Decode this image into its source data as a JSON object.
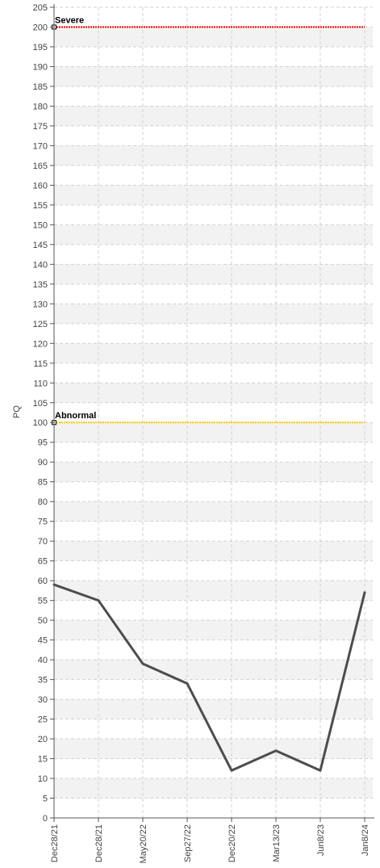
{
  "chart_data": {
    "type": "line",
    "ylabel": "PQ",
    "xlabel": "",
    "ylim": [
      0,
      205
    ],
    "y_tick_step": 5,
    "grid": true,
    "categories": [
      "Dec28/21",
      "Dec28/21",
      "May20/22",
      "Sep27/22",
      "Dec20/22",
      "Mar13/23",
      "Jun8/23",
      "Jan8/24"
    ],
    "series": [
      {
        "values": [
          59,
          55,
          39,
          34,
          12,
          17,
          12,
          57
        ],
        "color": "#4d4d4d"
      }
    ],
    "reference_lines": [
      {
        "label": "Severe",
        "value": 200,
        "color": "#ff0000"
      },
      {
        "label": "Abnormal",
        "value": 100,
        "color": "#ffcc00"
      }
    ]
  }
}
